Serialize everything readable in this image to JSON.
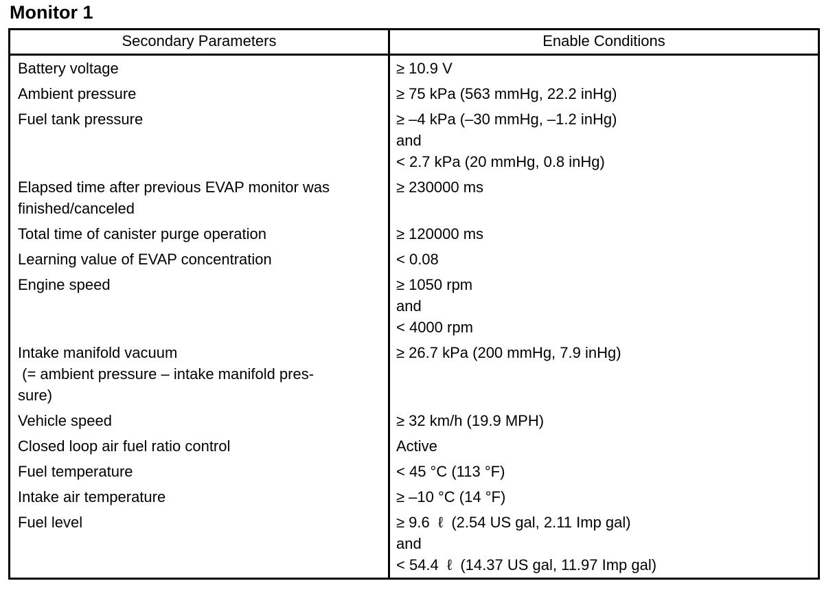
{
  "page": {
    "title": "Monitor 1"
  },
  "table": {
    "headers": [
      "Secondary Parameters",
      "Enable Conditions"
    ],
    "rows": [
      {
        "parameter": "Battery voltage",
        "condition": "≥ 10.9 V"
      },
      {
        "parameter": "Ambient pressure",
        "condition": "≥ 75 kPa (563 mmHg, 22.2 inHg)"
      },
      {
        "parameter": "Fuel tank pressure",
        "condition": "≥ –4 kPa (–30 mmHg, –1.2 inHg)\nand\n< 2.7 kPa (20 mmHg, 0.8 inHg)"
      },
      {
        "parameter": "Elapsed time after previous EVAP monitor was\nfinished/canceled",
        "condition": "≥ 230000 ms"
      },
      {
        "parameter": "Total time of canister purge operation",
        "condition": "≥ 120000 ms"
      },
      {
        "parameter": "Learning value of EVAP concentration",
        "condition": "< 0.08"
      },
      {
        "parameter": "Engine speed",
        "condition": "≥ 1050 rpm\nand\n< 4000 rpm"
      },
      {
        "parameter": "Intake manifold vacuum\n (= ambient pressure – intake manifold pres-\nsure)",
        "condition": "≥ 26.7 kPa (200 mmHg, 7.9 inHg)"
      },
      {
        "parameter": "Vehicle speed",
        "condition": "≥ 32 km/h (19.9 MPH)"
      },
      {
        "parameter": "Closed loop air fuel ratio control",
        "condition": "Active"
      },
      {
        "parameter": "Fuel temperature",
        "condition": "< 45 °C (113 °F)"
      },
      {
        "parameter": "Intake air temperature",
        "condition": "≥ –10 °C (14 °F)"
      },
      {
        "parameter": "Fuel level",
        "condition": "≥ 9.6  ℓ  (2.54 US gal, 2.11 Imp gal)\nand\n< 54.4  ℓ  (14.37 US gal, 11.97 Imp gal)"
      }
    ]
  }
}
